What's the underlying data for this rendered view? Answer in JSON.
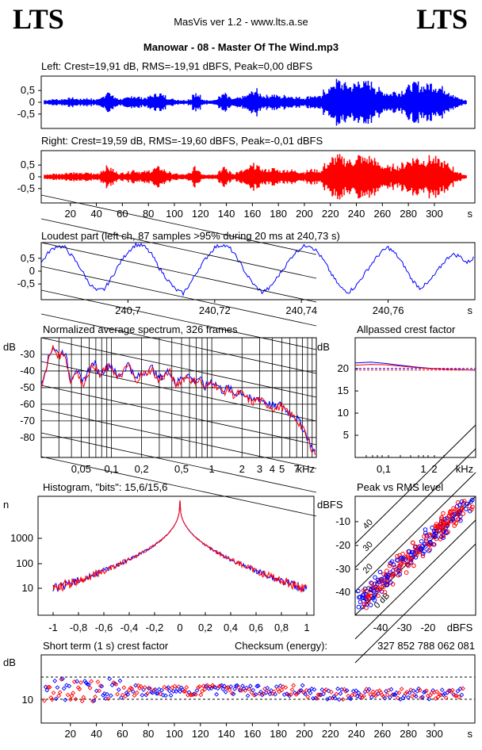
{
  "header": {
    "logo_left": "LTS",
    "logo_right": "LTS",
    "subtitle": "MasVis ver 1.2 - www.lts.a.se",
    "track_title": "Manowar - 08 - Master Of The Wind.mp3"
  },
  "colors": {
    "left": "#0000ff",
    "right": "#ff0000",
    "axis": "#000000"
  },
  "chart_data": [
    {
      "id": "left-waveform",
      "type": "area",
      "title": "Left: Crest=19,91 dB, RMS=-19,91 dBFS, Peak=0,00 dBFS",
      "ylim": [
        -1,
        1
      ],
      "y_ticks": [
        "0,5",
        "0",
        "-0,5"
      ],
      "xlim": [
        0,
        322
      ],
      "envelope": [
        0.1,
        0.12,
        0.14,
        0.12,
        0.15,
        0.18,
        0.2,
        0.16,
        0.14,
        0.18,
        0.16,
        0.12,
        0.15,
        0.3,
        0.45,
        0.35,
        0.2,
        0.15,
        0.18,
        0.2,
        0.3,
        0.25,
        0.2,
        0.22,
        0.28,
        0.35,
        0.4,
        0.3,
        0.2,
        0.15,
        0.12,
        0.1,
        0.1,
        0.15,
        0.4,
        0.3,
        0.12,
        0.1,
        0.1,
        0.12,
        0.3,
        0.38,
        0.22,
        0.15,
        0.2,
        0.25,
        0.3,
        0.45,
        0.55,
        0.4,
        0.3,
        0.3,
        0.35,
        0.3,
        0.25,
        0.3,
        0.28,
        0.25,
        0.22,
        0.2,
        0.25,
        0.3,
        0.28,
        0.25,
        0.55,
        0.6,
        0.9,
        0.95,
        0.85,
        0.8,
        0.75,
        0.8,
        1.0,
        0.85,
        0.9,
        0.85,
        0.6,
        0.5,
        0.45,
        0.4,
        0.5,
        0.45,
        0.55,
        0.7,
        0.8,
        0.85,
        0.75,
        0.75,
        0.85,
        0.8,
        0.7,
        0.65,
        0.55,
        0.4,
        0.25,
        0.15,
        0.1
      ]
    },
    {
      "id": "right-waveform",
      "type": "area",
      "title": "Right: Crest=19,59 dB, RMS=-19,60 dBFS, Peak=-0,01 dBFS",
      "ylim": [
        -1,
        1
      ],
      "y_ticks": [
        "0,5",
        "0",
        "-0,5"
      ],
      "xlim": [
        0,
        322
      ],
      "x_ticks": [
        "20",
        "40",
        "60",
        "80",
        "100",
        "120",
        "140",
        "160",
        "180",
        "200",
        "220",
        "240",
        "260",
        "280",
        "300"
      ],
      "x_unit": "s",
      "envelope": [
        0.1,
        0.12,
        0.14,
        0.13,
        0.16,
        0.18,
        0.2,
        0.17,
        0.15,
        0.18,
        0.17,
        0.13,
        0.16,
        0.32,
        0.45,
        0.36,
        0.22,
        0.16,
        0.2,
        0.22,
        0.32,
        0.26,
        0.22,
        0.24,
        0.3,
        0.38,
        0.42,
        0.32,
        0.22,
        0.16,
        0.13,
        0.11,
        0.11,
        0.16,
        0.42,
        0.32,
        0.13,
        0.11,
        0.11,
        0.13,
        0.32,
        0.4,
        0.24,
        0.16,
        0.22,
        0.27,
        0.32,
        0.48,
        0.55,
        0.42,
        0.32,
        0.32,
        0.37,
        0.32,
        0.27,
        0.32,
        0.3,
        0.27,
        0.24,
        0.22,
        0.27,
        0.32,
        0.3,
        0.27,
        0.55,
        0.62,
        0.85,
        0.9,
        0.82,
        0.78,
        0.72,
        0.78,
        0.95,
        0.82,
        0.88,
        0.82,
        0.62,
        0.52,
        0.47,
        0.42,
        0.52,
        0.47,
        0.58,
        0.72,
        0.82,
        0.86,
        0.76,
        0.76,
        0.86,
        0.82,
        0.72,
        0.66,
        0.56,
        0.42,
        0.27,
        0.16,
        0.1
      ]
    },
    {
      "id": "loudest-part",
      "type": "line",
      "title": "Loudest part (left  ch, 87 samples >95% during 20 ms at 240,73 s)",
      "ylim": [
        -1,
        1
      ],
      "y_ticks": [
        "0,5",
        "0",
        "-0,5"
      ],
      "xlim": [
        240.68,
        240.78
      ],
      "x_ticks": [
        "240,7",
        "240,72",
        "240,74",
        "240,76"
      ],
      "x_unit": "s",
      "series": [
        {
          "values": [
            0.3,
            0.7,
            0.9,
            0.85,
            0.5,
            0.1,
            -0.4,
            -0.7,
            -0.65,
            -0.2,
            0.3,
            0.7,
            0.95,
            0.9,
            0.6,
            0.1,
            -0.3,
            -0.65,
            -0.8,
            -0.4,
            0.1,
            0.5,
            0.85,
            0.95,
            0.8,
            0.4,
            -0.1,
            -0.5,
            -0.75,
            -0.6,
            -0.2,
            0.2,
            0.6,
            0.85,
            0.95,
            0.7,
            0.3,
            -0.2,
            -0.6,
            -0.75,
            -0.5,
            -0.1,
            0.3,
            0.65,
            0.85,
            0.6,
            0.2,
            -0.3,
            -0.6,
            -0.45,
            -0.1,
            0.3,
            0.6,
            0.55,
            0.3,
            0.5
          ]
        }
      ]
    },
    {
      "id": "spectrum",
      "type": "line",
      "title": "Normalized average spectrum, 326 frames",
      "ylabel": "dB",
      "ylim": [
        -92,
        -20
      ],
      "y_ticks": [
        "-30",
        "-40",
        "-50",
        "-60",
        "-70",
        "-80"
      ],
      "x_ticks": [
        "0,05",
        "0,1",
        "0,2",
        "0,5",
        "1",
        "2",
        "3",
        "4",
        "5",
        "7"
      ],
      "x_unit": "kHz",
      "series": [
        {
          "values": [
            -48,
            -35,
            -25,
            -30,
            -28,
            -45,
            -38,
            -48,
            -40,
            -35,
            -42,
            -38,
            -36,
            -44,
            -40,
            -35,
            -45,
            -42,
            -40,
            -38,
            -45,
            -42,
            -40,
            -48,
            -44,
            -42,
            -46,
            -44,
            -50,
            -46,
            -48,
            -52,
            -50,
            -54,
            -52,
            -55,
            -58,
            -56,
            -58,
            -60,
            -62,
            -60,
            -64,
            -66,
            -70,
            -76,
            -84,
            -90
          ]
        },
        {
          "values": [
            -50,
            -36,
            -26,
            -31,
            -29,
            -47,
            -39,
            -49,
            -41,
            -36,
            -43,
            -39,
            -37,
            -45,
            -41,
            -36,
            -46,
            -43,
            -41,
            -39,
            -46,
            -43,
            -41,
            -49,
            -45,
            -43,
            -47,
            -45,
            -51,
            -47,
            -49,
            -53,
            -51,
            -55,
            -53,
            -56,
            -59,
            -57,
            -59,
            -61,
            -63,
            -61,
            -65,
            -67,
            -71,
            -77,
            -85,
            -91
          ]
        }
      ]
    },
    {
      "id": "allpassed-crest",
      "type": "line",
      "title": "Allpassed crest factor",
      "ylabel": "dB",
      "ylim": [
        0,
        25
      ],
      "y_ticks": [
        "20",
        "15",
        "10",
        "5"
      ],
      "x_ticks": [
        "0,1",
        "1",
        "2",
        "kHz"
      ],
      "reference": 19.9,
      "series": [
        {
          "values": [
            21.3,
            21.5,
            21.2,
            20.8,
            20.4,
            20.1,
            19.9,
            19.8,
            19.7
          ]
        },
        {
          "values": [
            20.8,
            21.0,
            20.9,
            20.6,
            20.3,
            20.0,
            19.9,
            19.8,
            19.7
          ]
        }
      ]
    },
    {
      "id": "histogram",
      "type": "line",
      "title": "Histogram, \"bits\": 15,6/15,6",
      "ylabel": "n",
      "y_ticks": [
        "1000",
        "100",
        "10"
      ],
      "xlim": [
        -1,
        1
      ],
      "x_ticks": [
        "-1",
        "-0,8",
        "-0,6",
        "-0,4",
        "-0,2",
        "0",
        "0,2",
        "0,4",
        "0,6",
        "0,8",
        "1"
      ]
    },
    {
      "id": "peak-vs-rms",
      "type": "scatter",
      "title": "Peak vs RMS level",
      "ylabel": "dBFS",
      "y_ticks": [
        "-10",
        "-20",
        "-30",
        "-40"
      ],
      "x_ticks": [
        "-40",
        "-30",
        "-20",
        "dBFS"
      ],
      "diagonal_labels": [
        "40",
        "30",
        "20",
        "10",
        "0 dB"
      ]
    },
    {
      "id": "short-term-crest",
      "type": "scatter",
      "title": "Short term (1 s) crest factor",
      "checksum_label": "Checksum (energy):",
      "checksum_value": "327 852 788 062 081",
      "ylabel": "dB",
      "y_ticks": [
        "10"
      ],
      "x_ticks": [
        "20",
        "40",
        "60",
        "80",
        "100",
        "120",
        "140",
        "160",
        "180",
        "200",
        "220",
        "240",
        "260",
        "280",
        "300"
      ],
      "x_unit": "s"
    }
  ]
}
